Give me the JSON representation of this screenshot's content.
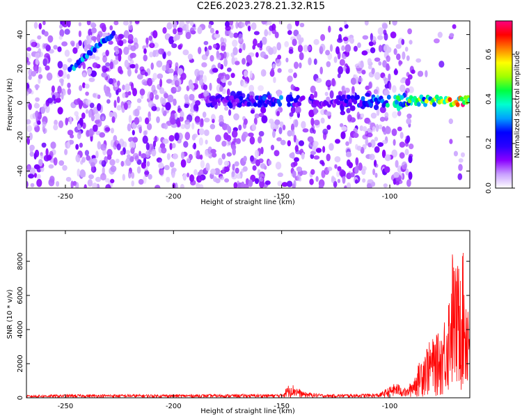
{
  "title": "C2E6.2023.278.21.32.R15",
  "chart_data": [
    {
      "type": "heatmap",
      "xlabel": "Height of straight line (km)",
      "ylabel": "Frequency (Hz)",
      "xlim": [
        -268,
        -63
      ],
      "ylim": [
        -50,
        48
      ],
      "xticks": [
        -250,
        -200,
        -150,
        -100
      ],
      "yticks": [
        -40,
        -20,
        0,
        20,
        40
      ],
      "colorbar": {
        "label": "Normalized spectral amplitude",
        "range": [
          0,
          0.75
        ],
        "ticks": [
          0.0,
          0.2,
          0.4,
          0.6
        ],
        "colormap": [
          "#ffffff",
          "#c9a0ff",
          "#8a00ff",
          "#2a00ff",
          "#0000ff",
          "#00a0ff",
          "#00ffd0",
          "#00ff40",
          "#a0ff00",
          "#ffff00",
          "#ff8000",
          "#ff0000",
          "#ff0080"
        ]
      },
      "features": [
        {
          "label": "diagonal streak",
          "x": [
            -248,
            -240,
            -233,
            -227
          ],
          "y": [
            19,
            27,
            36,
            40
          ],
          "level": 0.3
        },
        {
          "label": "signal band",
          "x_range": [
            -185,
            -63
          ],
          "y_center": 1,
          "level_profile": [
            [
              -185,
              0.15
            ],
            [
              -150,
              0.28
            ],
            [
              -130,
              0.12
            ],
            [
              -100,
              0.35
            ],
            [
              -80,
              0.5
            ],
            [
              -65,
              0.7
            ]
          ]
        }
      ],
      "gaps": [
        [
          -150,
          -147
        ],
        [
          -140,
          -137
        ],
        [
          -100,
          -98
        ],
        [
          -90,
          -63
        ]
      ]
    },
    {
      "type": "line",
      "xlabel": "Height of straight line (km)",
      "ylabel": "SNR (10 * v/v)",
      "xlim": [
        -268,
        -63
      ],
      "ylim": [
        0,
        9800
      ],
      "xticks": [
        -250,
        -200,
        -150,
        -100
      ],
      "yticks": [
        0,
        2000,
        4000,
        6000,
        8000
      ],
      "series": [
        {
          "color": "#ff0000",
          "envelope": [
            [
              -268,
              150
            ],
            [
              -250,
              200
            ],
            [
              -200,
              200
            ],
            [
              -150,
              220
            ],
            [
              -146,
              900
            ],
            [
              -140,
              350
            ],
            [
              -130,
              200
            ],
            [
              -105,
              250
            ],
            [
              -97,
              900
            ],
            [
              -92,
              500
            ],
            [
              -88,
              1500
            ],
            [
              -84,
              3000
            ],
            [
              -80,
              3500
            ],
            [
              -76,
              4000
            ],
            [
              -73,
              6000
            ],
            [
              -71,
              8800
            ],
            [
              -69,
              7500
            ],
            [
              -67,
              9800
            ],
            [
              -65,
              7000
            ],
            [
              -63,
              6000
            ]
          ]
        }
      ]
    }
  ]
}
